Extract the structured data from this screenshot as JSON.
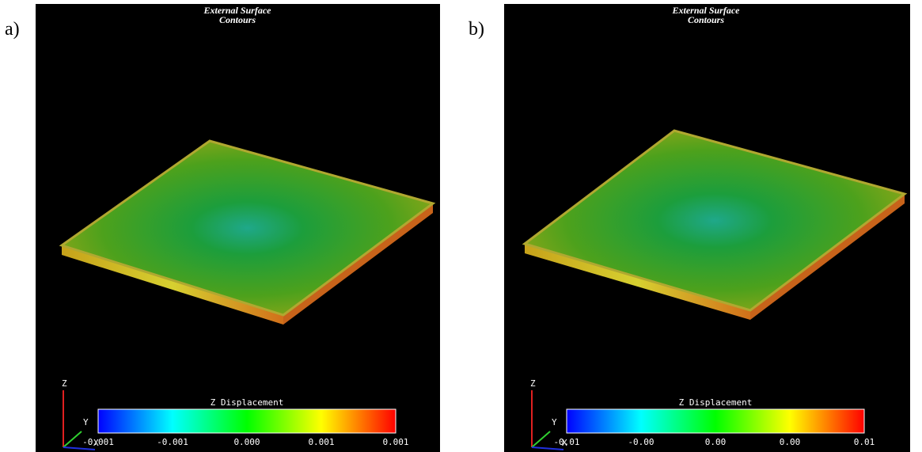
{
  "panels": [
    {
      "label": "a)",
      "title": [
        "External Surface",
        "Contours"
      ],
      "colorbar_title": "Z Displacement",
      "colorbar_ticks": [
        "-0.001",
        "-0.001",
        "0.000",
        "0.001",
        "0.001"
      ],
      "axes": [
        "Z",
        "Y",
        "X"
      ]
    },
    {
      "label": "b)",
      "title": [
        "External Surface",
        "Contours"
      ],
      "colorbar_title": "Z Displacement",
      "colorbar_ticks": [
        "-0.01",
        "-0.00",
        "0.00",
        "0.00",
        "0.01"
      ],
      "axes": [
        "Z",
        "Y",
        "X"
      ]
    }
  ]
}
